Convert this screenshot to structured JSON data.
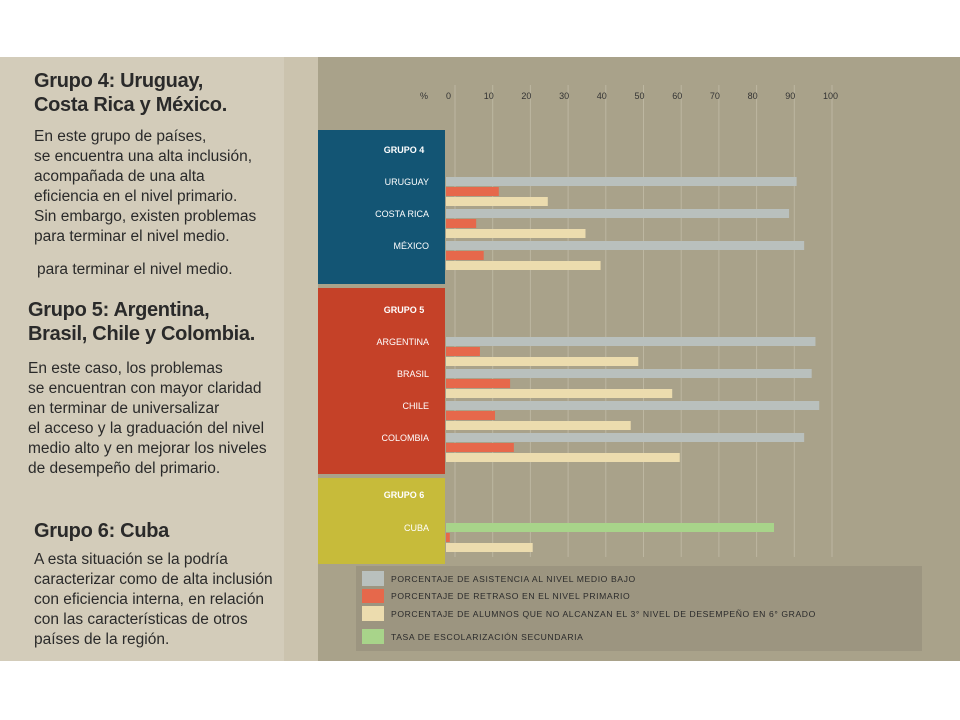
{
  "left_text": {
    "group4_title": [
      "Grupo 4: Uruguay,",
      "Costa Rica y México."
    ],
    "group4_body": [
      "En este grupo de países,",
      "se encuentra una alta inclusión,",
      "acompañada de una alta",
      "eficiencia en el nivel primario.",
      "Sin embargo, existen problemas",
      "para terminar el nivel medio."
    ],
    "group4_repeat": "para terminar el nivel medio.",
    "group5_title": [
      "Grupo 5: Argentina,",
      "Brasil, Chile y Colombia."
    ],
    "group5_body": [
      "En este caso, los problemas",
      "se encuentran con mayor claridad",
      "en terminar de universalizar",
      "el acceso y la graduación del nivel",
      "medio alto y en mejorar los niveles",
      "de desempeño del primario."
    ],
    "group6_title": [
      "Grupo 6: Cuba"
    ],
    "group6_body": [
      "A esta situación se la podría",
      "caracterizar como de alta inclusión",
      "con eficiencia interna, en relación",
      "con las características de otros",
      "países de la región."
    ]
  },
  "chart_data": {
    "type": "bar",
    "orientation": "horizontal",
    "axis_label": "%",
    "ticks": [
      0,
      10,
      20,
      30,
      40,
      50,
      60,
      70,
      80,
      90,
      100
    ],
    "xlim": [
      0,
      100
    ],
    "grid": true,
    "groups": [
      {
        "label": "GRUPO 4",
        "color": "#135574",
        "countries": [
          {
            "name": "URUGUAY",
            "values": [
              93,
              14,
              27
            ]
          },
          {
            "name": "COSTA RICA",
            "values": [
              91,
              8,
              37
            ]
          },
          {
            "name": "MÉXICO",
            "values": [
              95,
              10,
              41
            ]
          }
        ]
      },
      {
        "label": "GRUPO 5",
        "color": "#c54128",
        "countries": [
          {
            "name": "ARGENTINA",
            "values": [
              98,
              9,
              51
            ]
          },
          {
            "name": "BRASIL",
            "values": [
              97,
              17,
              60
            ]
          },
          {
            "name": "CHILE",
            "values": [
              99,
              13,
              49
            ]
          },
          {
            "name": "COLOMBIA",
            "values": [
              95,
              18,
              62
            ]
          }
        ]
      },
      {
        "label": "GRUPO 6",
        "color": "#c7bb3a",
        "countries": [
          {
            "name": "CUBA",
            "secondary_school": 87,
            "values": [
              null,
              1,
              23
            ]
          }
        ]
      }
    ],
    "series": [
      {
        "name": "PORCENTAJE DE ASISTENCIA AL NIVEL MEDIO BAJO",
        "color": "#b9c0bd"
      },
      {
        "name": "PORCENTAJE DE RETRASO EN EL NIVEL PRIMARIO",
        "color": "#e6684b"
      },
      {
        "name": "PORCENTAJE DE ALUMNOS QUE NO ALCANZAN EL 3° NIVEL DE DESEMPEÑO EN 6° GRADO",
        "color": "#ecdcae"
      },
      {
        "name": "TASA DE ESCOLARIZACIÓN SECUNDARIA",
        "color": "#a8d48a"
      }
    ],
    "legend_position": "bottom"
  }
}
